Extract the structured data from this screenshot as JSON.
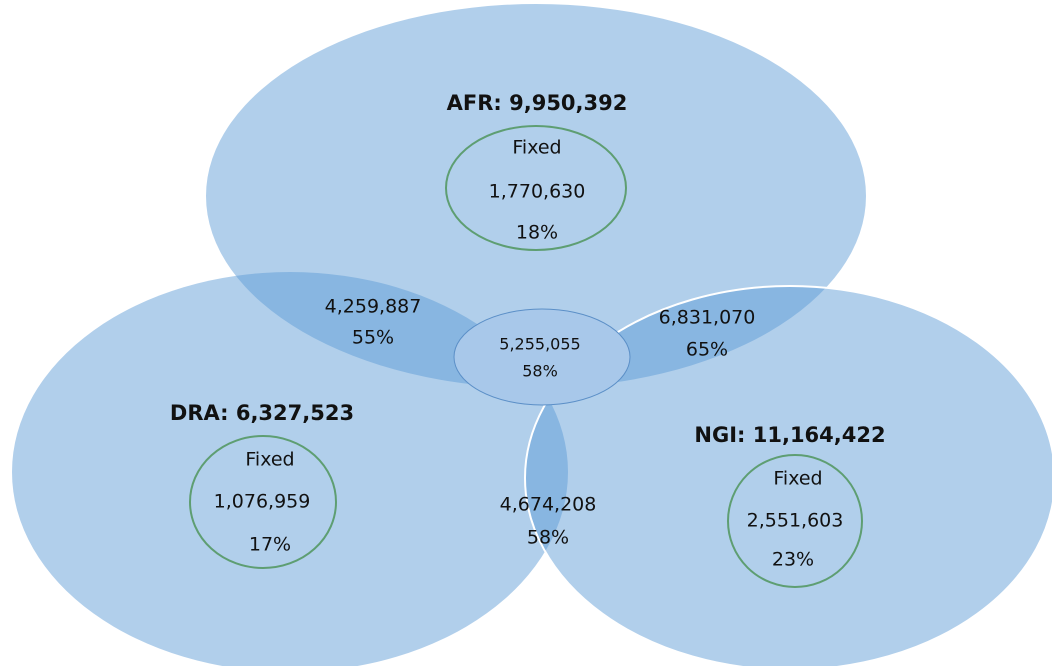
{
  "sets": [
    {
      "label": "AFR: 9,950,392",
      "fixed": {
        "label": "Fixed",
        "value": "1,770,630",
        "percent": "18%"
      }
    },
    {
      "label": "DRA: 6,327,523",
      "fixed": {
        "label": "Fixed",
        "value": "1,076,959",
        "percent": "17%"
      }
    },
    {
      "label": "NGI: 11,164,422",
      "fixed": {
        "label": "Fixed",
        "value": "2,551,603",
        "percent": "23%"
      }
    }
  ],
  "intersections": [
    {
      "sets": "AFR-DRA",
      "value": "4,259,887",
      "percent": "55%"
    },
    {
      "sets": "AFR-NGI",
      "value": "6,831,070",
      "percent": "65%"
    },
    {
      "sets": "DRA-NGI",
      "value": "4,674,208",
      "percent": "58%"
    }
  ],
  "center": {
    "value": "5,255,055",
    "percent": "58%"
  }
}
